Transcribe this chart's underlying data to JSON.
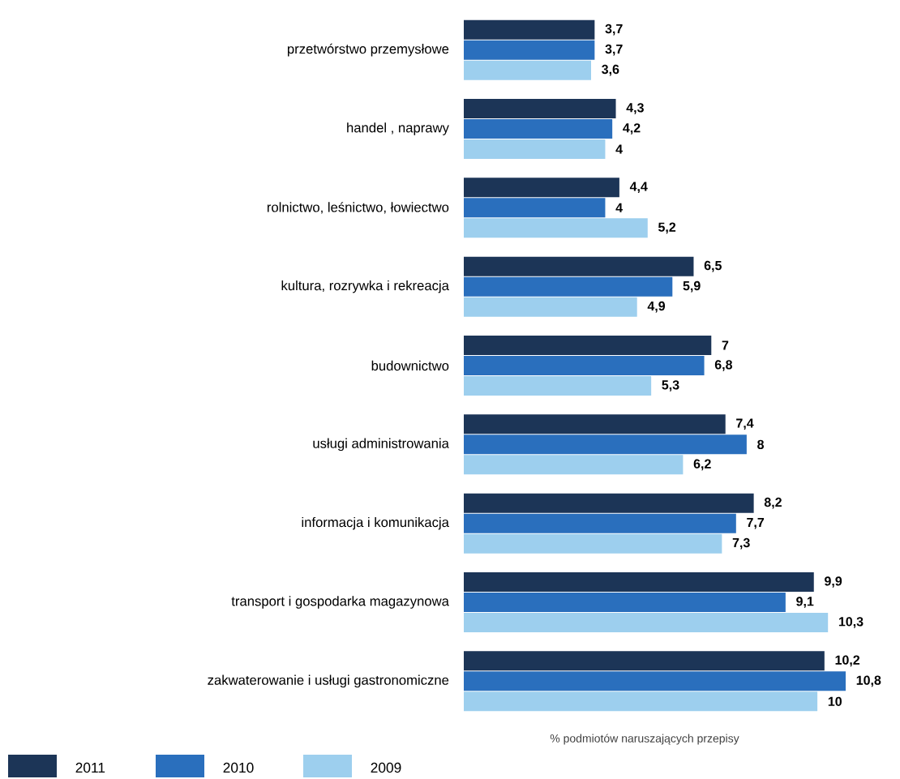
{
  "chart_data": {
    "type": "bar",
    "orientation": "horizontal",
    "xlabel": "% podmiotów  naruszających przepisy",
    "legend": "bottom left",
    "categories": [
      "przetwórstwo przemysłowe",
      "handel , naprawy",
      "rolnictwo, leśnictwo, łowiectwo",
      "kultura, rozrywka i rekreacja",
      "budownictwo",
      "usługi administrowania",
      "informacja i komunikacja",
      "transport i gospodarka magazynowa",
      "zakwaterowanie i usługi gastronomiczne"
    ],
    "series": [
      {
        "name": "2011",
        "color": "#1c3557",
        "values": [
          3.7,
          4.3,
          4.4,
          6.5,
          7,
          7.4,
          8.2,
          9.9,
          10.2
        ],
        "value_labels": [
          "3,7",
          "4,3",
          "4,4",
          "6,5",
          "7",
          "7,4",
          "8,2",
          "9,9",
          "10,2"
        ]
      },
      {
        "name": "2010",
        "color": "#2a6fbd",
        "values": [
          3.7,
          4.2,
          4,
          5.9,
          6.8,
          8,
          7.7,
          9.1,
          10.8
        ],
        "value_labels": [
          "3,7",
          "4,2",
          "4",
          "5,9",
          "6,8",
          "8",
          "7,7",
          "9,1",
          "10,8"
        ]
      },
      {
        "name": "2009",
        "color": "#9dcfee",
        "values": [
          3.6,
          4,
          5.2,
          4.9,
          5.3,
          6.2,
          7.3,
          10.3,
          10
        ],
        "value_labels": [
          "3,6",
          "4",
          "5,2",
          "4,9",
          "5,3",
          "6,2",
          "7,3",
          "10,3",
          "10"
        ]
      }
    ]
  }
}
